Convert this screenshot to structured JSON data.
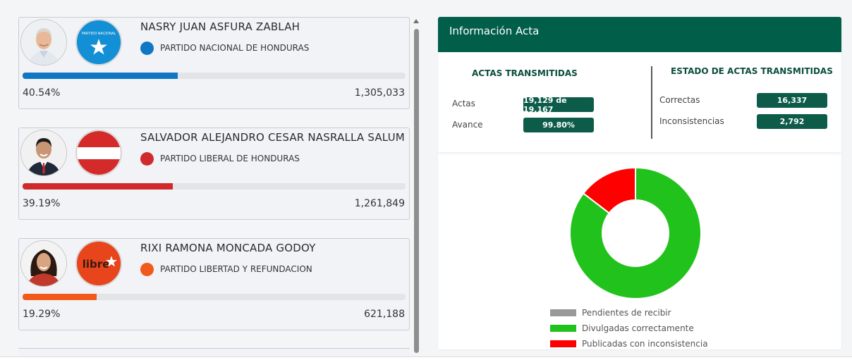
{
  "candidates": [
    {
      "name": "NASRY JUAN ASFURA ZABLAH",
      "party": "PARTIDO NACIONAL DE HONDURAS",
      "party_logo_text": "PARTIDO NACIONAL",
      "party_color": "#0f77c3",
      "percent_text": "40.54%",
      "percent": 40.54,
      "votes": "1,305,033"
    },
    {
      "name": "SALVADOR ALEJANDRO CESAR NASRALLA SALUM",
      "party": "PARTIDO LIBERAL DE HONDURAS",
      "party_color": "#d02a2c",
      "percent_text": "39.19%",
      "percent": 39.19,
      "votes": "1,261,849"
    },
    {
      "name": "RIXI RAMONA MONCADA GODOY",
      "party": "PARTIDO LIBERTAD Y REFUNDACION",
      "party_logo_text": "libre",
      "party_color": "#f25a1c",
      "percent_text": "19.29%",
      "percent": 19.29,
      "votes": "621,188"
    }
  ],
  "panel": {
    "title": "Información Acta",
    "actas_transmitidas": {
      "heading": "ACTAS TRANSMITIDAS",
      "actas_label": "Actas",
      "actas_value": "19,129 de 19,167",
      "avance_label": "Avance",
      "avance_value": "99.80%"
    },
    "estado": {
      "heading": "ESTADO DE ACTAS TRANSMITIDAS",
      "correctas_label": "Correctas",
      "correctas_value": "16,337",
      "inconsistencias_label": "Inconsistencias",
      "inconsistencias_value": "2,792"
    }
  },
  "chart_data": {
    "type": "pie",
    "donut": true,
    "categories": [
      "Pendientes de recibir",
      "Divulgadas correctamente",
      "Publicadas con inconsistencia"
    ],
    "values": [
      0,
      16337,
      2792
    ],
    "colors": [
      "#999999",
      "#21c21b",
      "#ff0000"
    ],
    "legend_position": "bottom"
  },
  "icons": {
    "candidate_photo": "person-photo",
    "party_logo_nacional": "star-icon",
    "party_logo_liberal": "flag-stripes"
  },
  "theme": {
    "header_green": "#005e49",
    "pill_green": "#0d5c4a"
  }
}
